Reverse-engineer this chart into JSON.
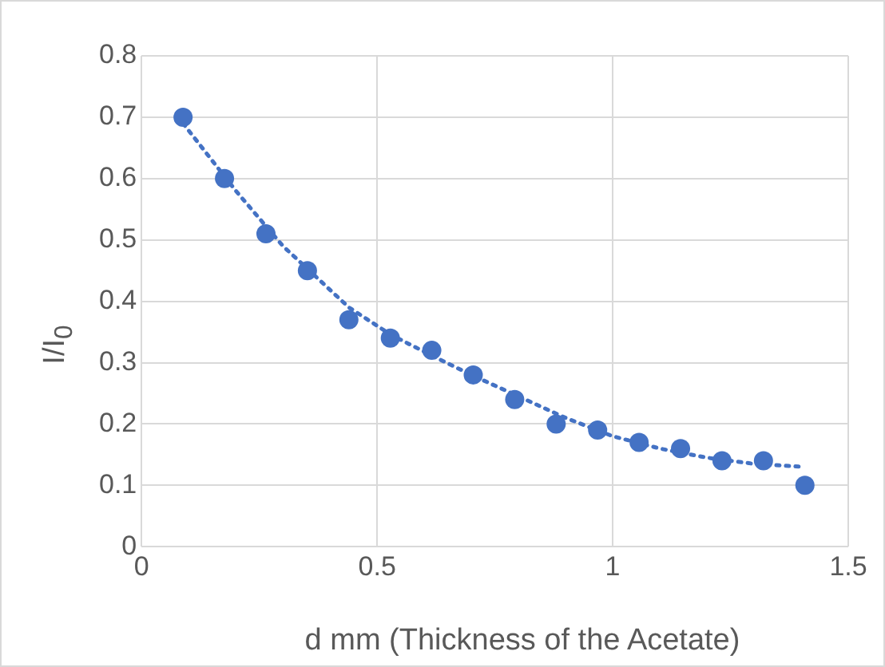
{
  "chart_data": {
    "type": "scatter",
    "xlabel": "d mm (Thickness of the Acetate)",
    "ylabel": "I/I$_{0}$",
    "series": [
      {
        "color": "#4472c4",
        "x": [
          0.088,
          0.176,
          0.264,
          0.352,
          0.44,
          0.528,
          0.616,
          0.704,
          0.792,
          0.88,
          0.968,
          1.056,
          1.144,
          1.232,
          1.32,
          1.408
        ],
        "values": [
          0.7,
          0.6,
          0.51,
          0.45,
          0.37,
          0.34,
          0.32,
          0.28,
          0.24,
          0.2,
          0.19,
          0.17,
          0.16,
          0.14,
          0.14,
          0.1
        ]
      },
      {
        "type": "line",
        "color": "#4472c4",
        "line_style": "dotted",
        "marker": "none",
        "x": [
          0.088,
          0.2,
          0.3,
          0.44,
          0.53,
          0.62,
          0.7,
          0.8,
          0.9,
          1.0,
          1.1,
          1.2,
          1.3,
          1.408
        ],
        "values": [
          0.69,
          0.58,
          0.49,
          0.39,
          0.345,
          0.31,
          0.28,
          0.245,
          0.21,
          0.18,
          0.16,
          0.145,
          0.135,
          0.13
        ]
      }
    ],
    "xlim": [
      0,
      1.5
    ],
    "xticks": [
      0,
      0.5,
      1,
      1.5
    ],
    "ylim": [
      0,
      0.8
    ],
    "yticks": [
      0,
      0.1,
      0.2,
      0.3,
      0.4,
      0.5,
      0.6,
      0.7,
      0.8
    ],
    "grid": true,
    "marker": "circle",
    "legend": false
  }
}
